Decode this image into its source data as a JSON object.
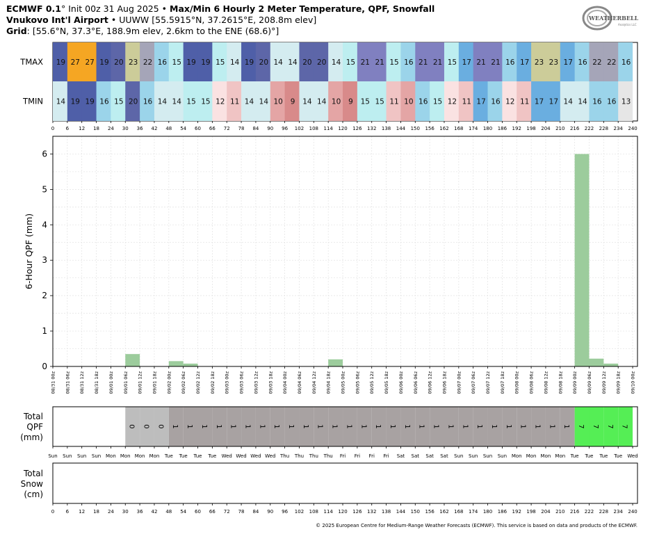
{
  "header": {
    "model": "ECMWF 0.1",
    "init_deg": "°",
    "init": "Init 00z 31 Aug 2025",
    "bullet": "•",
    "product": "Max/Min 6 Hourly 2 Meter Temperature,  QPF,  Snowfall",
    "station_name": "Vnukovo Int'l Airport",
    "station_info": "UUWW [55.5915°N, 37.2615°E, 208.8m elev]",
    "grid_label": "Grid",
    "grid_info": ": [55.6°N, 37.3°E, 188.9m elev, 2.6km to the ENE (68.6)°]"
  },
  "logo": {
    "text": "WEATHERBELL",
    "sub": "Analytics LLC"
  },
  "footer": "© 2025 European Centre for Medium-Range Weather Forecasts (ECMWF). This service is based on data and products of the ECMWF.",
  "colors": {
    "qpf_bar": "#9ccc9c",
    "qpf_total_0": "#bdbdbd",
    "qpf_total_1": "#a8a2a2",
    "qpf_total_7": "#55ee55"
  },
  "chart_data": [
    {
      "type": "heatmap",
      "name": "temperature_table",
      "rows": [
        "TMAX",
        "TMIN"
      ],
      "x_hours": [
        0,
        6,
        12,
        18,
        24,
        30,
        36,
        42,
        48,
        54,
        60,
        66,
        72,
        78,
        84,
        90,
        96,
        102,
        108,
        114,
        120,
        126,
        132,
        138,
        144,
        150,
        156,
        162,
        168,
        174,
        180,
        186,
        192,
        198,
        204,
        210,
        216,
        222,
        228,
        234,
        240
      ],
      "tmax": [
        {
          "start": 0,
          "end": 12,
          "value": 19
        },
        {
          "start": 6,
          "end": 18,
          "value": 27
        },
        {
          "start": 12,
          "end": 24,
          "value": 27
        },
        {
          "start": 18,
          "end": 30,
          "value": 19
        },
        {
          "start": 24,
          "end": 36,
          "value": 20
        },
        {
          "start": 30,
          "end": 42,
          "value": 23
        },
        {
          "start": 36,
          "end": 48,
          "value": 22
        },
        {
          "start": 42,
          "end": 54,
          "value": 16
        },
        {
          "start": 48,
          "end": 60,
          "value": 15
        },
        {
          "start": 54,
          "end": 66,
          "value": 19
        },
        {
          "start": 60,
          "end": 72,
          "value": 19
        },
        {
          "start": 66,
          "end": 78,
          "value": 15
        },
        {
          "start": 72,
          "end": 84,
          "value": 14
        },
        {
          "start": 78,
          "end": 90,
          "value": 19
        },
        {
          "start": 84,
          "end": 96,
          "value": 20
        },
        {
          "start": 90,
          "end": 102,
          "value": 14
        },
        {
          "start": 96,
          "end": 108,
          "value": 14
        },
        {
          "start": 102,
          "end": 114,
          "value": 20
        },
        {
          "start": 108,
          "end": 120,
          "value": 20
        },
        {
          "start": 114,
          "end": 126,
          "value": 14
        },
        {
          "start": 120,
          "end": 132,
          "value": 15
        },
        {
          "start": 126,
          "end": 138,
          "value": 21
        },
        {
          "start": 132,
          "end": 144,
          "value": 21
        },
        {
          "start": 138,
          "end": 150,
          "value": 15
        },
        {
          "start": 144,
          "end": 156,
          "value": 16
        },
        {
          "start": 150,
          "end": 162,
          "value": 21
        },
        {
          "start": 156,
          "end": 168,
          "value": 21
        },
        {
          "start": 162,
          "end": 174,
          "value": 15
        },
        {
          "start": 168,
          "end": 180,
          "value": 17
        },
        {
          "start": 174,
          "end": 186,
          "value": 21
        },
        {
          "start": 180,
          "end": 192,
          "value": 21
        },
        {
          "start": 186,
          "end": 198,
          "value": 16
        },
        {
          "start": 192,
          "end": 204,
          "value": 17
        },
        {
          "start": 198,
          "end": 210,
          "value": 23
        },
        {
          "start": 204,
          "end": 216,
          "value": 23
        },
        {
          "start": 210,
          "end": 222,
          "value": 17
        },
        {
          "start": 216,
          "end": 228,
          "value": 16
        },
        {
          "start": 222,
          "end": 234,
          "value": 22
        },
        {
          "start": 228,
          "end": 240,
          "value": 22
        },
        {
          "start": 234,
          "end": 240,
          "value": 16
        }
      ],
      "tmin": [
        {
          "start": 0,
          "end": 12,
          "value": 14
        },
        {
          "start": 6,
          "end": 18,
          "value": 19
        },
        {
          "start": 12,
          "end": 24,
          "value": 19
        },
        {
          "start": 18,
          "end": 30,
          "value": 16
        },
        {
          "start": 24,
          "end": 36,
          "value": 15
        },
        {
          "start": 30,
          "end": 42,
          "value": 20
        },
        {
          "start": 36,
          "end": 48,
          "value": 16
        },
        {
          "start": 42,
          "end": 54,
          "value": 14
        },
        {
          "start": 48,
          "end": 60,
          "value": 14
        },
        {
          "start": 54,
          "end": 66,
          "value": 15
        },
        {
          "start": 60,
          "end": 72,
          "value": 15
        },
        {
          "start": 66,
          "end": 78,
          "value": 12
        },
        {
          "start": 72,
          "end": 84,
          "value": 11
        },
        {
          "start": 78,
          "end": 90,
          "value": 14
        },
        {
          "start": 84,
          "end": 96,
          "value": 14
        },
        {
          "start": 90,
          "end": 102,
          "value": 10
        },
        {
          "start": 96,
          "end": 108,
          "value": 9
        },
        {
          "start": 102,
          "end": 114,
          "value": 14
        },
        {
          "start": 108,
          "end": 120,
          "value": 14
        },
        {
          "start": 114,
          "end": 126,
          "value": 10
        },
        {
          "start": 120,
          "end": 132,
          "value": 9
        },
        {
          "start": 126,
          "end": 138,
          "value": 15
        },
        {
          "start": 132,
          "end": 144,
          "value": 15
        },
        {
          "start": 138,
          "end": 150,
          "value": 11
        },
        {
          "start": 144,
          "end": 156,
          "value": 10
        },
        {
          "start": 150,
          "end": 162,
          "value": 16
        },
        {
          "start": 156,
          "end": 168,
          "value": 15
        },
        {
          "start": 162,
          "end": 174,
          "value": 12
        },
        {
          "start": 168,
          "end": 180,
          "value": 11
        },
        {
          "start": 174,
          "end": 186,
          "value": 17
        },
        {
          "start": 180,
          "end": 192,
          "value": 16
        },
        {
          "start": 186,
          "end": 198,
          "value": 12
        },
        {
          "start": 192,
          "end": 204,
          "value": 11
        },
        {
          "start": 198,
          "end": 210,
          "value": 17
        },
        {
          "start": 204,
          "end": 216,
          "value": 17
        },
        {
          "start": 210,
          "end": 222,
          "value": 14
        },
        {
          "start": 216,
          "end": 228,
          "value": 14
        },
        {
          "start": 222,
          "end": 234,
          "value": 16
        },
        {
          "start": 228,
          "end": 240,
          "value": 16
        },
        {
          "start": 234,
          "end": 240,
          "value": 13
        }
      ]
    },
    {
      "type": "bar",
      "name": "qpf_6hour",
      "ylabel": "6-Hour QPF (mm)",
      "ylim": [
        0,
        6.5
      ],
      "yticks": [
        0,
        1,
        2,
        3,
        4,
        5,
        6
      ],
      "grid": true,
      "x_labels": [
        "08/31 00z",
        "08/31 06z",
        "08/31 12z",
        "08/31 18z",
        "09/01 00z",
        "09/01 06z",
        "09/01 12z",
        "09/01 18z",
        "09/02 00z",
        "09/02 06z",
        "09/02 12z",
        "09/02 18z",
        "09/03 00z",
        "09/03 06z",
        "09/03 12z",
        "09/03 18z",
        "09/04 00z",
        "09/04 06z",
        "09/04 12z",
        "09/04 18z",
        "09/05 00z",
        "09/05 06z",
        "09/05 12z",
        "09/05 18z",
        "09/06 00z",
        "09/06 06z",
        "09/06 12z",
        "09/06 18z",
        "09/07 00z",
        "09/07 06z",
        "09/07 12z",
        "09/07 18z",
        "09/08 00z",
        "09/08 06z",
        "09/08 12z",
        "09/08 18z",
        "09/09 00z",
        "09/09 06z",
        "09/09 12z",
        "09/09 18z",
        "09/10 00z"
      ],
      "bars": [
        {
          "start": 30,
          "end": 36,
          "value": 0.35
        },
        {
          "start": 48,
          "end": 54,
          "value": 0.15
        },
        {
          "start": 54,
          "end": 60,
          "value": 0.08
        },
        {
          "start": 114,
          "end": 120,
          "value": 0.2
        },
        {
          "start": 216,
          "end": 222,
          "value": 6.0
        },
        {
          "start": 222,
          "end": 228,
          "value": 0.22
        },
        {
          "start": 228,
          "end": 234,
          "value": 0.08
        }
      ]
    },
    {
      "type": "heatmap",
      "name": "total_qpf",
      "ylabel": "Total QPF (mm)",
      "day_labels": [
        "Sun",
        "Sun",
        "Sun",
        "Sun",
        "Mon",
        "Mon",
        "Mon",
        "Mon",
        "Tue",
        "Tue",
        "Tue",
        "Tue",
        "Wed",
        "Wed",
        "Wed",
        "Wed",
        "Thu",
        "Thu",
        "Thu",
        "Thu",
        "Fri",
        "Fri",
        "Fri",
        "Fri",
        "Sat",
        "Sat",
        "Sat",
        "Sat",
        "Sun",
        "Sun",
        "Sun",
        "Sun",
        "Mon",
        "Mon",
        "Mon",
        "Mon",
        "Tue",
        "Tue",
        "Tue",
        "Tue",
        "Wed"
      ],
      "cells": [
        {
          "start": 30,
          "end": 36,
          "value": "0"
        },
        {
          "start": 36,
          "end": 42,
          "value": "0"
        },
        {
          "start": 42,
          "end": 48,
          "value": "0"
        },
        {
          "start": 48,
          "end": 54,
          "value": "1"
        },
        {
          "start": 54,
          "end": 60,
          "value": "1"
        },
        {
          "start": 60,
          "end": 66,
          "value": "1"
        },
        {
          "start": 66,
          "end": 72,
          "value": "1"
        },
        {
          "start": 72,
          "end": 78,
          "value": "1"
        },
        {
          "start": 78,
          "end": 84,
          "value": "1"
        },
        {
          "start": 84,
          "end": 90,
          "value": "1"
        },
        {
          "start": 90,
          "end": 96,
          "value": "1"
        },
        {
          "start": 96,
          "end": 102,
          "value": "1"
        },
        {
          "start": 102,
          "end": 108,
          "value": "1"
        },
        {
          "start": 108,
          "end": 114,
          "value": "1"
        },
        {
          "start": 114,
          "end": 120,
          "value": "1"
        },
        {
          "start": 120,
          "end": 126,
          "value": "1"
        },
        {
          "start": 126,
          "end": 132,
          "value": "1"
        },
        {
          "start": 132,
          "end": 138,
          "value": "1"
        },
        {
          "start": 138,
          "end": 144,
          "value": "1"
        },
        {
          "start": 144,
          "end": 150,
          "value": "1"
        },
        {
          "start": 150,
          "end": 156,
          "value": "1"
        },
        {
          "start": 156,
          "end": 162,
          "value": "1"
        },
        {
          "start": 162,
          "end": 168,
          "value": "1"
        },
        {
          "start": 168,
          "end": 174,
          "value": "1"
        },
        {
          "start": 174,
          "end": 180,
          "value": "1"
        },
        {
          "start": 180,
          "end": 186,
          "value": "1"
        },
        {
          "start": 186,
          "end": 192,
          "value": "1"
        },
        {
          "start": 192,
          "end": 198,
          "value": "1"
        },
        {
          "start": 198,
          "end": 204,
          "value": "1"
        },
        {
          "start": 204,
          "end": 210,
          "value": "1"
        },
        {
          "start": 210,
          "end": 216,
          "value": "1"
        },
        {
          "start": 216,
          "end": 222,
          "value": "7"
        },
        {
          "start": 222,
          "end": 228,
          "value": "7"
        },
        {
          "start": 228,
          "end": 234,
          "value": "7"
        },
        {
          "start": 234,
          "end": 240,
          "value": "7"
        }
      ]
    },
    {
      "type": "heatmap",
      "name": "total_snow",
      "ylabel": "Total Snow (cm)",
      "x_hours": [
        0,
        6,
        12,
        18,
        24,
        30,
        36,
        42,
        48,
        54,
        60,
        66,
        72,
        78,
        84,
        90,
        96,
        102,
        108,
        114,
        120,
        126,
        132,
        138,
        144,
        150,
        156,
        162,
        168,
        174,
        180,
        186,
        192,
        198,
        204,
        210,
        216,
        222,
        228,
        234,
        240
      ],
      "cells": []
    }
  ]
}
